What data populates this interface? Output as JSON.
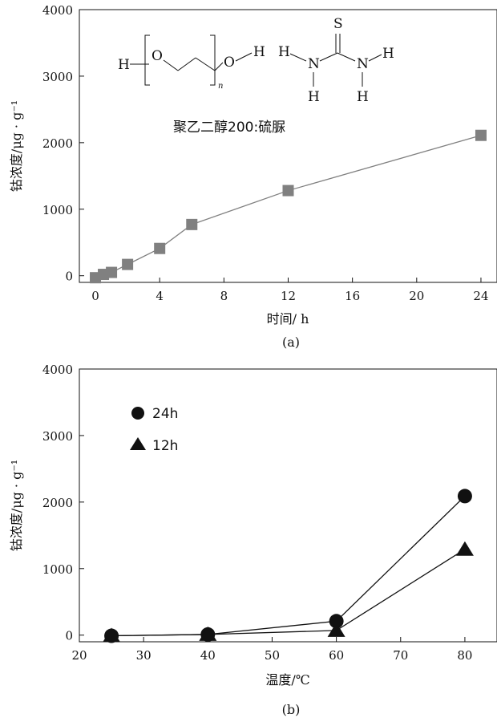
{
  "chart_data": [
    {
      "panel": "(a)",
      "type": "line",
      "xlabel": "时间/ h",
      "ylabel": "钴浓度/μg · g⁻¹",
      "xlim": [
        -1,
        25
      ],
      "ylim": [
        -100,
        4000
      ],
      "xticks": [
        0,
        4,
        8,
        12,
        16,
        20,
        24
      ],
      "yticks": [
        0,
        1000,
        2000,
        3000,
        4000
      ],
      "grid": false,
      "marker": "square",
      "marker_color": "#808080",
      "line_color": "#808080",
      "x": [
        0,
        0.5,
        1,
        2,
        4,
        6,
        12,
        24
      ],
      "y": [
        -30,
        20,
        50,
        170,
        410,
        770,
        1280,
        2110
      ],
      "annotation": "聚乙二醇200:硫脲",
      "structures": {
        "peg": {
          "h_left": "H",
          "o_left": "O",
          "o_right": "O",
          "h_right": "H",
          "subscript": "n"
        },
        "thiourea": {
          "s": "S",
          "h1": "H",
          "n1": "N",
          "n2": "N",
          "h2": "H",
          "h3": "H",
          "h4": "H"
        }
      }
    },
    {
      "panel": "(b)",
      "type": "line",
      "xlabel": "温度/℃",
      "ylabel": "钴浓度/μg · g⁻¹",
      "xlim": [
        20,
        85
      ],
      "ylim": [
        -100,
        4000
      ],
      "xticks": [
        20,
        30,
        40,
        50,
        60,
        70,
        80
      ],
      "yticks": [
        0,
        1000,
        2000,
        3000,
        4000
      ],
      "grid": false,
      "legend_position": "top-left",
      "x": [
        25,
        40,
        60,
        80
      ],
      "series": [
        {
          "name": "24h",
          "marker": "circle",
          "values": [
            -10,
            10,
            210,
            2090
          ]
        },
        {
          "name": "12h",
          "marker": "triangle",
          "values": [
            -10,
            10,
            70,
            1290
          ]
        }
      ]
    }
  ]
}
